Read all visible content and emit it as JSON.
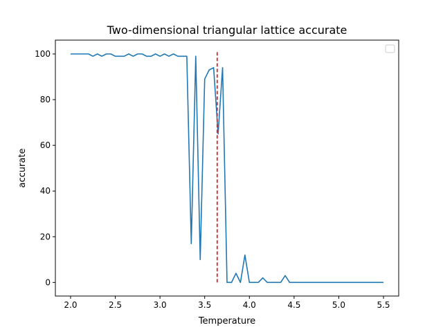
{
  "chart_data": {
    "type": "line",
    "title": "Two-dimensional triangular lattice accurate",
    "xlabel": "Temperature",
    "ylabel": "accurate",
    "xlim": [
      1.83,
      5.67
    ],
    "ylim": [
      -5.95,
      106.05
    ],
    "xticks": [
      2.0,
      2.5,
      3.0,
      3.5,
      4.0,
      4.5,
      5.0,
      5.5
    ],
    "xtick_labels": [
      "2.0",
      "2.5",
      "3.0",
      "3.5",
      "4.0",
      "4.5",
      "5.0",
      "5.5"
    ],
    "yticks": [
      0,
      20,
      40,
      60,
      80,
      100
    ],
    "ytick_labels": [
      "0",
      "20",
      "40",
      "60",
      "80",
      "100"
    ],
    "grid": false,
    "legend": {
      "placement": "upper-right",
      "entries": []
    },
    "series": [
      {
        "color": "#1f77b4",
        "x": [
          2.0,
          2.05,
          2.1,
          2.15,
          2.2,
          2.25,
          2.3,
          2.35,
          2.4,
          2.45,
          2.5,
          2.55,
          2.6,
          2.65,
          2.7,
          2.75,
          2.8,
          2.85,
          2.9,
          2.95,
          3.0,
          3.05,
          3.1,
          3.15,
          3.2,
          3.25,
          3.3,
          3.35,
          3.4,
          3.45,
          3.5,
          3.55,
          3.6,
          3.65,
          3.7,
          3.75,
          3.8,
          3.85,
          3.9,
          3.95,
          4.0,
          4.05,
          4.1,
          4.15,
          4.2,
          4.25,
          4.3,
          4.35,
          4.4,
          4.45,
          4.5,
          4.55,
          4.6,
          4.65,
          4.7,
          4.75,
          4.8,
          4.85,
          4.9,
          4.95,
          5.0,
          5.05,
          5.1,
          5.15,
          5.2,
          5.25,
          5.3,
          5.35,
          5.4,
          5.45,
          5.5
        ],
        "y": [
          100,
          100,
          100,
          100,
          100,
          99,
          100,
          99,
          100,
          100,
          99,
          99,
          99,
          100,
          99,
          100,
          100,
          99,
          99,
          100,
          99,
          100,
          99,
          100,
          99,
          99,
          99,
          17,
          99,
          10,
          89,
          93,
          94,
          65,
          94,
          0,
          0,
          4,
          0,
          12,
          0,
          0,
          0,
          2,
          0,
          0,
          0,
          0,
          3,
          0,
          0,
          0,
          0,
          0,
          0,
          0,
          0,
          0,
          0,
          0,
          0,
          0,
          0,
          0,
          0,
          0,
          0,
          0,
          0,
          0,
          0
        ]
      }
    ],
    "reference_lines": [
      {
        "orientation": "vertical",
        "x": 3.64,
        "y_from": 0,
        "y_to": 101,
        "color": "#d62728",
        "style": "dashed"
      }
    ]
  }
}
